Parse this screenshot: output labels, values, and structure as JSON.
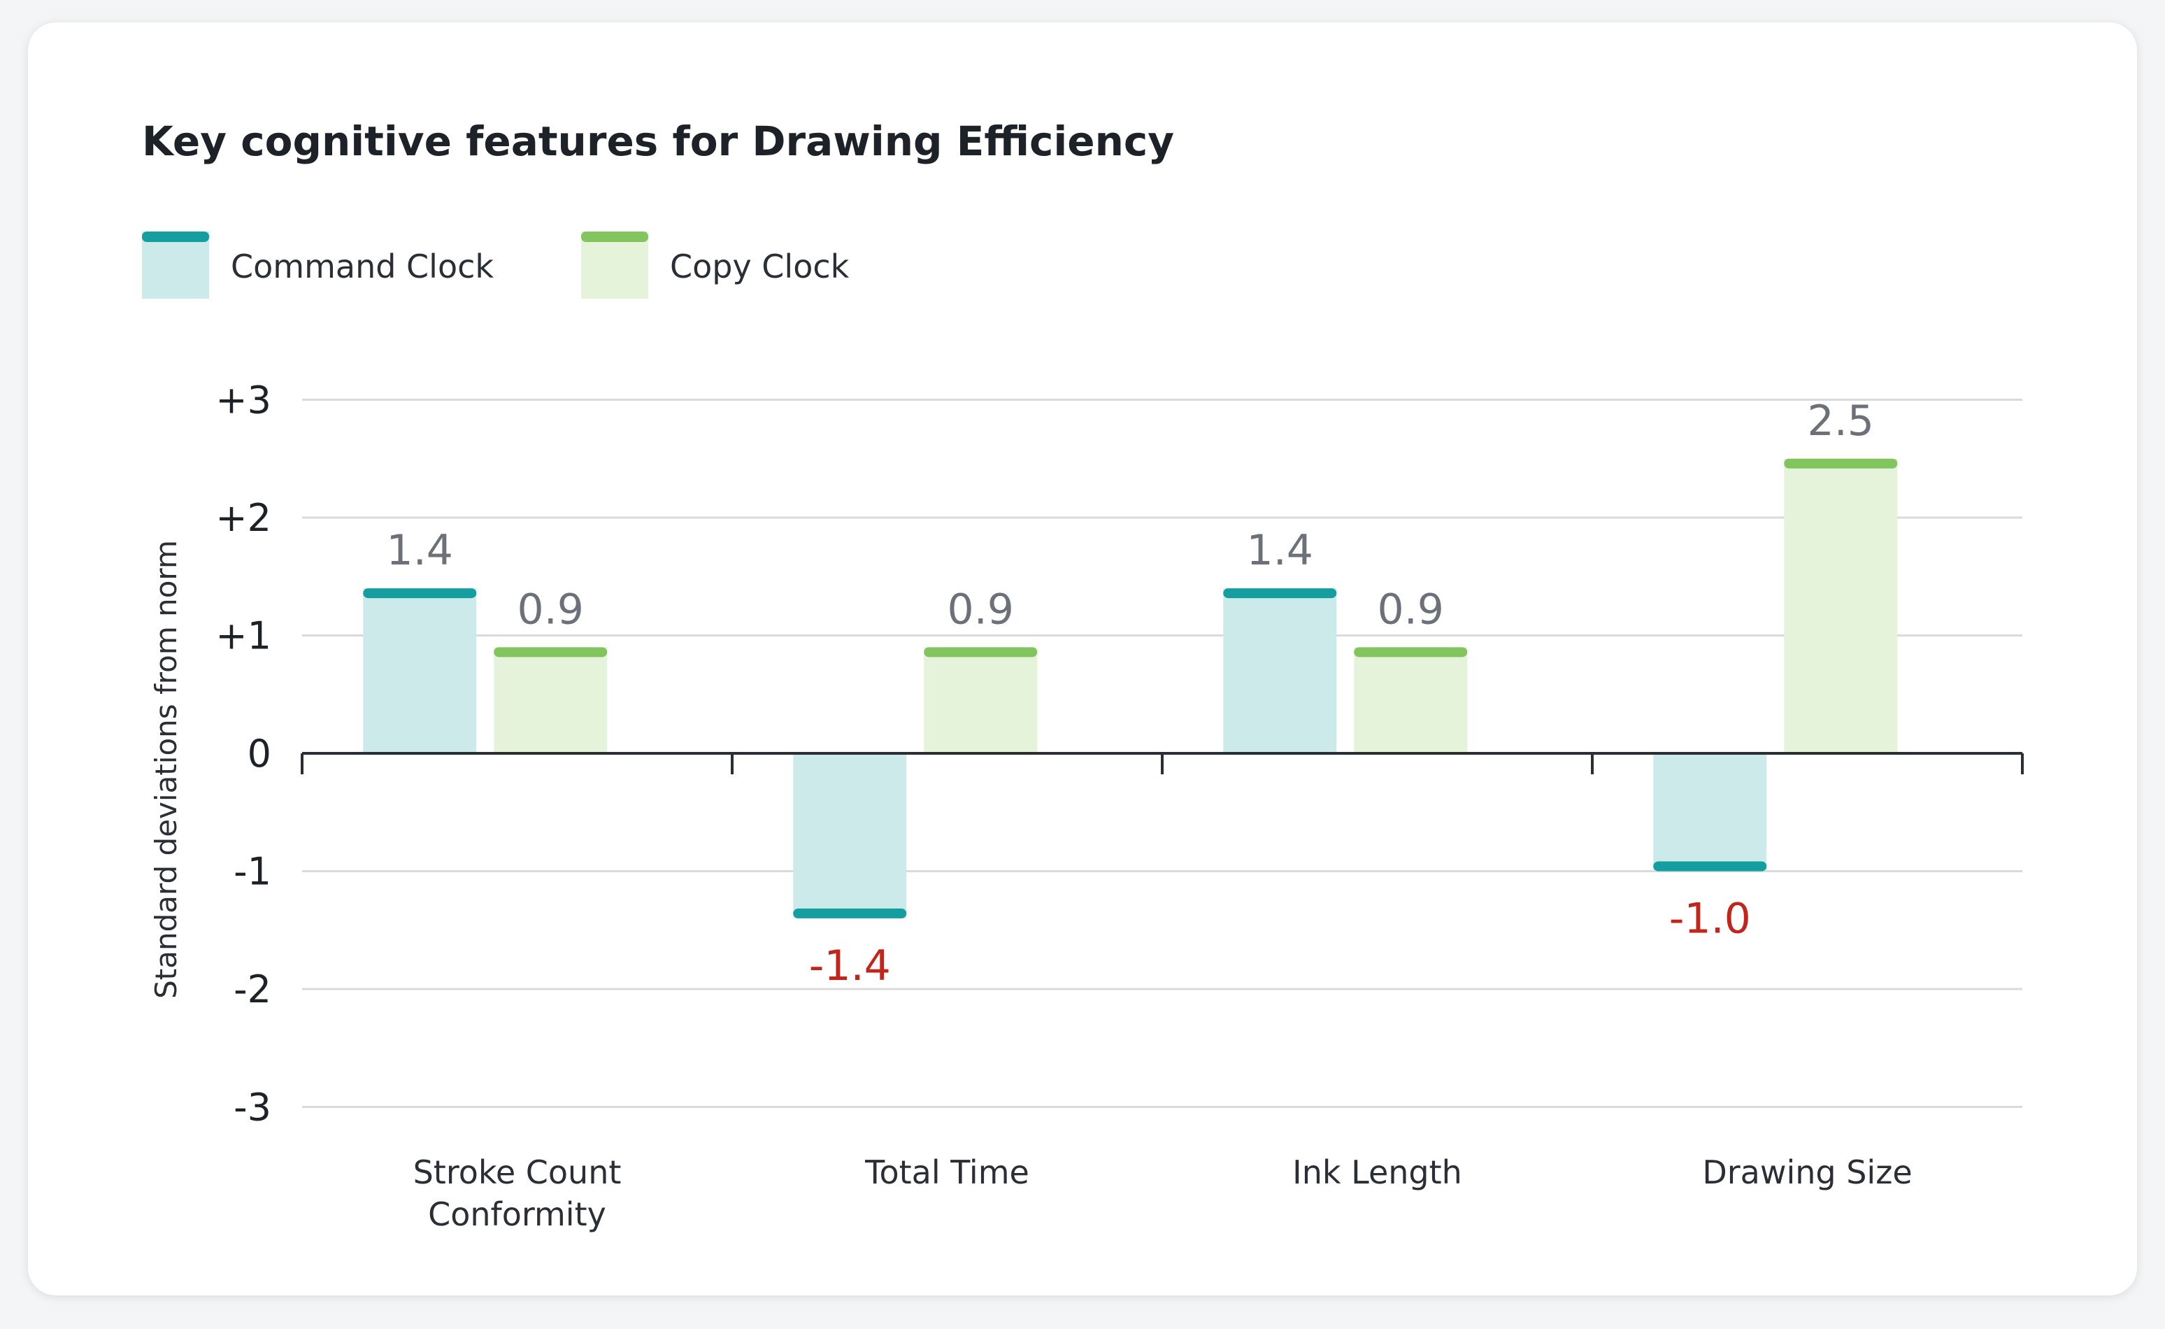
{
  "chart_data": {
    "type": "bar",
    "title": "Key cognitive features for Drawing Efficiency",
    "ylabel": "Standard deviations from norm",
    "xlabel": "",
    "ylim": [
      -3,
      3
    ],
    "yticks": [
      3,
      2,
      1,
      0,
      -1,
      -2,
      -3
    ],
    "ytick_labels": [
      "+3",
      "+2",
      "+1",
      "0",
      "-1",
      "-2",
      "-3"
    ],
    "grid": true,
    "legend": "top-left",
    "categories": [
      [
        "Stroke Count",
        "Conformity"
      ],
      [
        "Total Time"
      ],
      [
        "Ink Length"
      ],
      [
        "Drawing Size"
      ]
    ],
    "series": [
      {
        "name": "Command Clock",
        "values": [
          1.4,
          -1.4,
          1.4,
          -1.0
        ],
        "labels": [
          "1.4",
          "-1.4",
          "1.4",
          "-1.0"
        ]
      },
      {
        "name": "Copy Clock",
        "values": [
          0.9,
          0.9,
          0.9,
          2.5
        ],
        "labels": [
          "0.9",
          "0.9",
          "0.9",
          "2.5"
        ]
      }
    ]
  },
  "colors": {
    "command_fill": "#cdeaea",
    "command_cap": "#149e9f",
    "copy_fill": "#e4f3da",
    "copy_cap": "#82c45e",
    "positive_label": "#6b7079",
    "negative_label": "#c0261c",
    "grid": "#d8dadd",
    "axis": "#2a2e35"
  }
}
